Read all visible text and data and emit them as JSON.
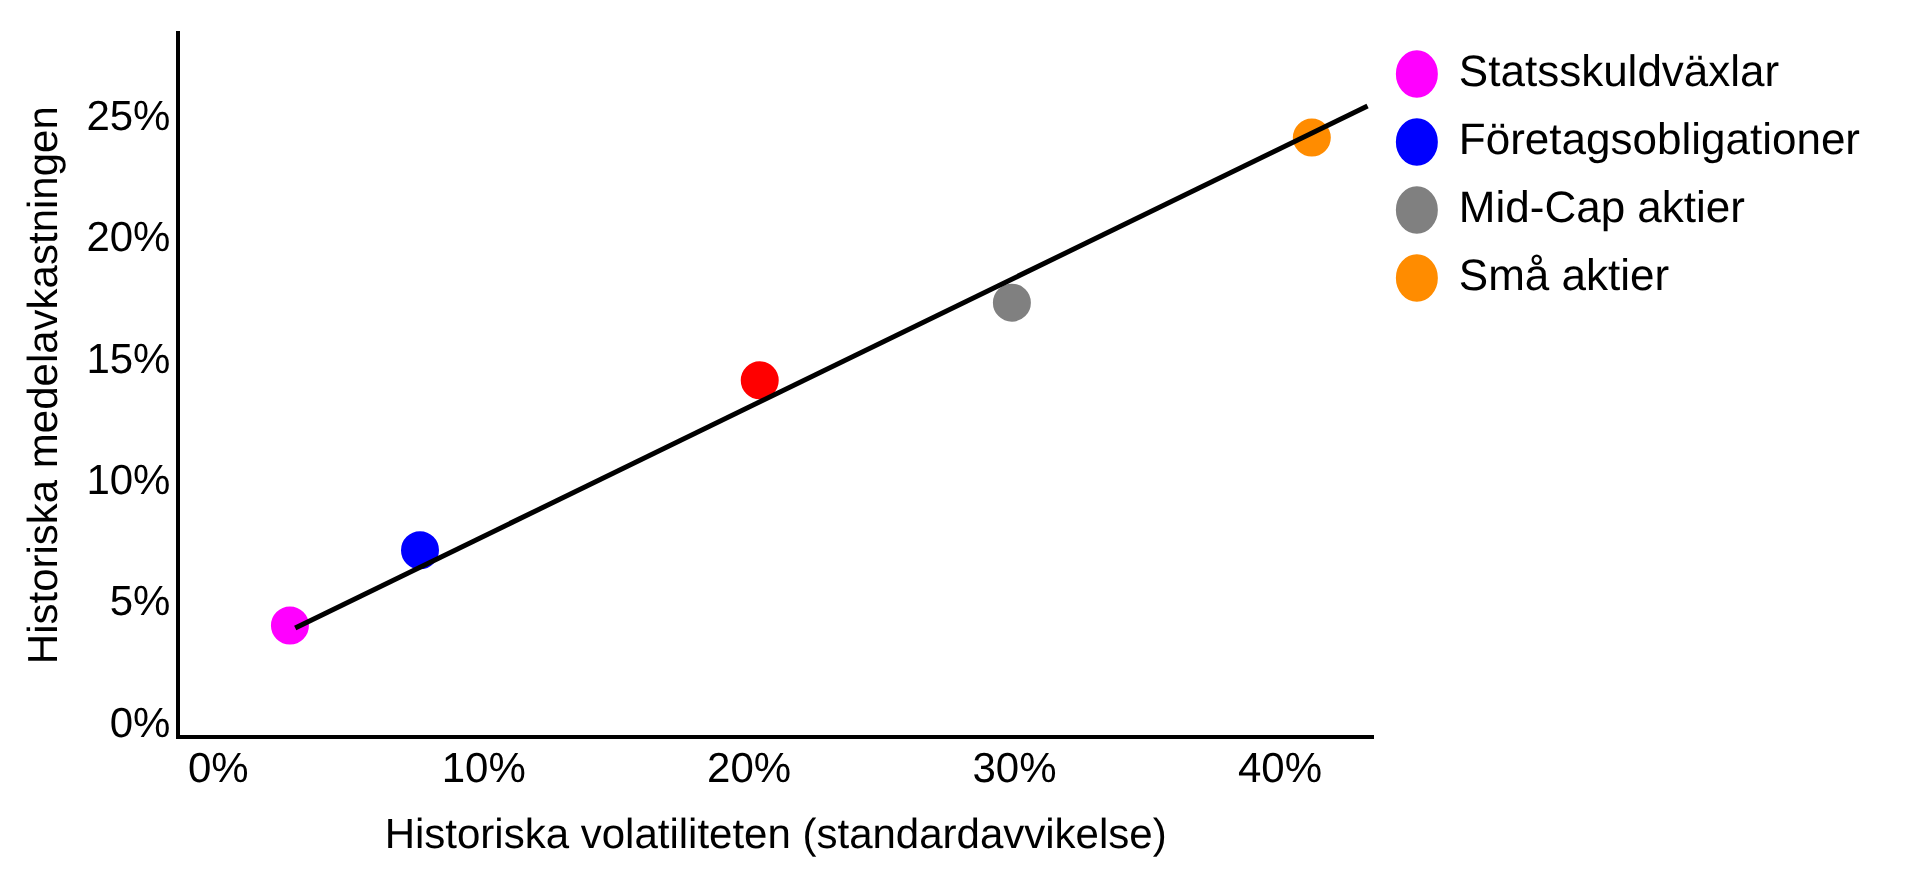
{
  "chart_data": {
    "type": "scatter",
    "xlabel": "Historiska volatiliteten (standardavvikelse)",
    "ylabel": "Historiska medelavkastningen",
    "xlim": [
      -1.5,
      43.5
    ],
    "xticks": [
      {
        "value": 0,
        "label": "0%"
      },
      {
        "value": 10,
        "label": "10%"
      },
      {
        "value": 20,
        "label": "20%"
      },
      {
        "value": 30,
        "label": "30%"
      },
      {
        "value": 40,
        "label": "40%"
      }
    ],
    "ylim": [
      -0.5,
      28.5
    ],
    "yticks": [
      {
        "value": 0,
        "label": "0%"
      },
      {
        "value": 5,
        "label": "5%"
      },
      {
        "value": 10,
        "label": "10%"
      },
      {
        "value": 15,
        "label": "15%"
      },
      {
        "value": 20,
        "label": "20%"
      },
      {
        "value": 25,
        "label": "25%"
      }
    ],
    "grid": false,
    "legend": "right",
    "marker": "circle",
    "series": [
      {
        "type": "line",
        "color": "#000000",
        "x": [
          2.9,
          43.3
        ],
        "values": [
          4.0,
          25.5
        ],
        "marker": "none"
      },
      {
        "name": "Statsskuldväxlar",
        "color": "#ff00ff",
        "x": [
          2.7
        ],
        "values": [
          4.1
        ]
      },
      {
        "name": "Företagsobligationer",
        "color": "#0000ff",
        "x": [
          7.6
        ],
        "values": [
          7.2
        ]
      },
      {
        "color": "#ff0000",
        "x": [
          20.4
        ],
        "values": [
          14.2
        ]
      },
      {
        "name": "Mid-Cap aktier",
        "color": "#808080",
        "x": [
          29.9
        ],
        "values": [
          17.4
        ]
      },
      {
        "name": "Små aktier",
        "color": "#ff8c00",
        "x": [
          41.2
        ],
        "values": [
          24.2
        ]
      }
    ]
  }
}
